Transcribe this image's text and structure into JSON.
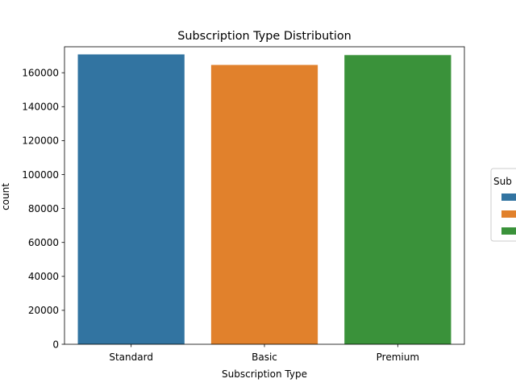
{
  "chart_data": {
    "type": "bar",
    "title": "Subscription Type Distribution",
    "xlabel": "Subscription Type",
    "ylabel": "count",
    "categories": [
      "Standard",
      "Basic",
      "Premium"
    ],
    "values": [
      170800,
      164600,
      170400
    ],
    "colors": [
      "#3274a1",
      "#e1812c",
      "#3a923a"
    ],
    "ylim": [
      0,
      175300
    ],
    "yticks": [
      0,
      20000,
      40000,
      60000,
      80000,
      100000,
      120000,
      140000,
      160000
    ],
    "grid": false,
    "legend": {
      "title": "Sub",
      "placement": "right, partially cut off",
      "colors": [
        "#3274a1",
        "#e1812c",
        "#3a923a"
      ]
    }
  }
}
